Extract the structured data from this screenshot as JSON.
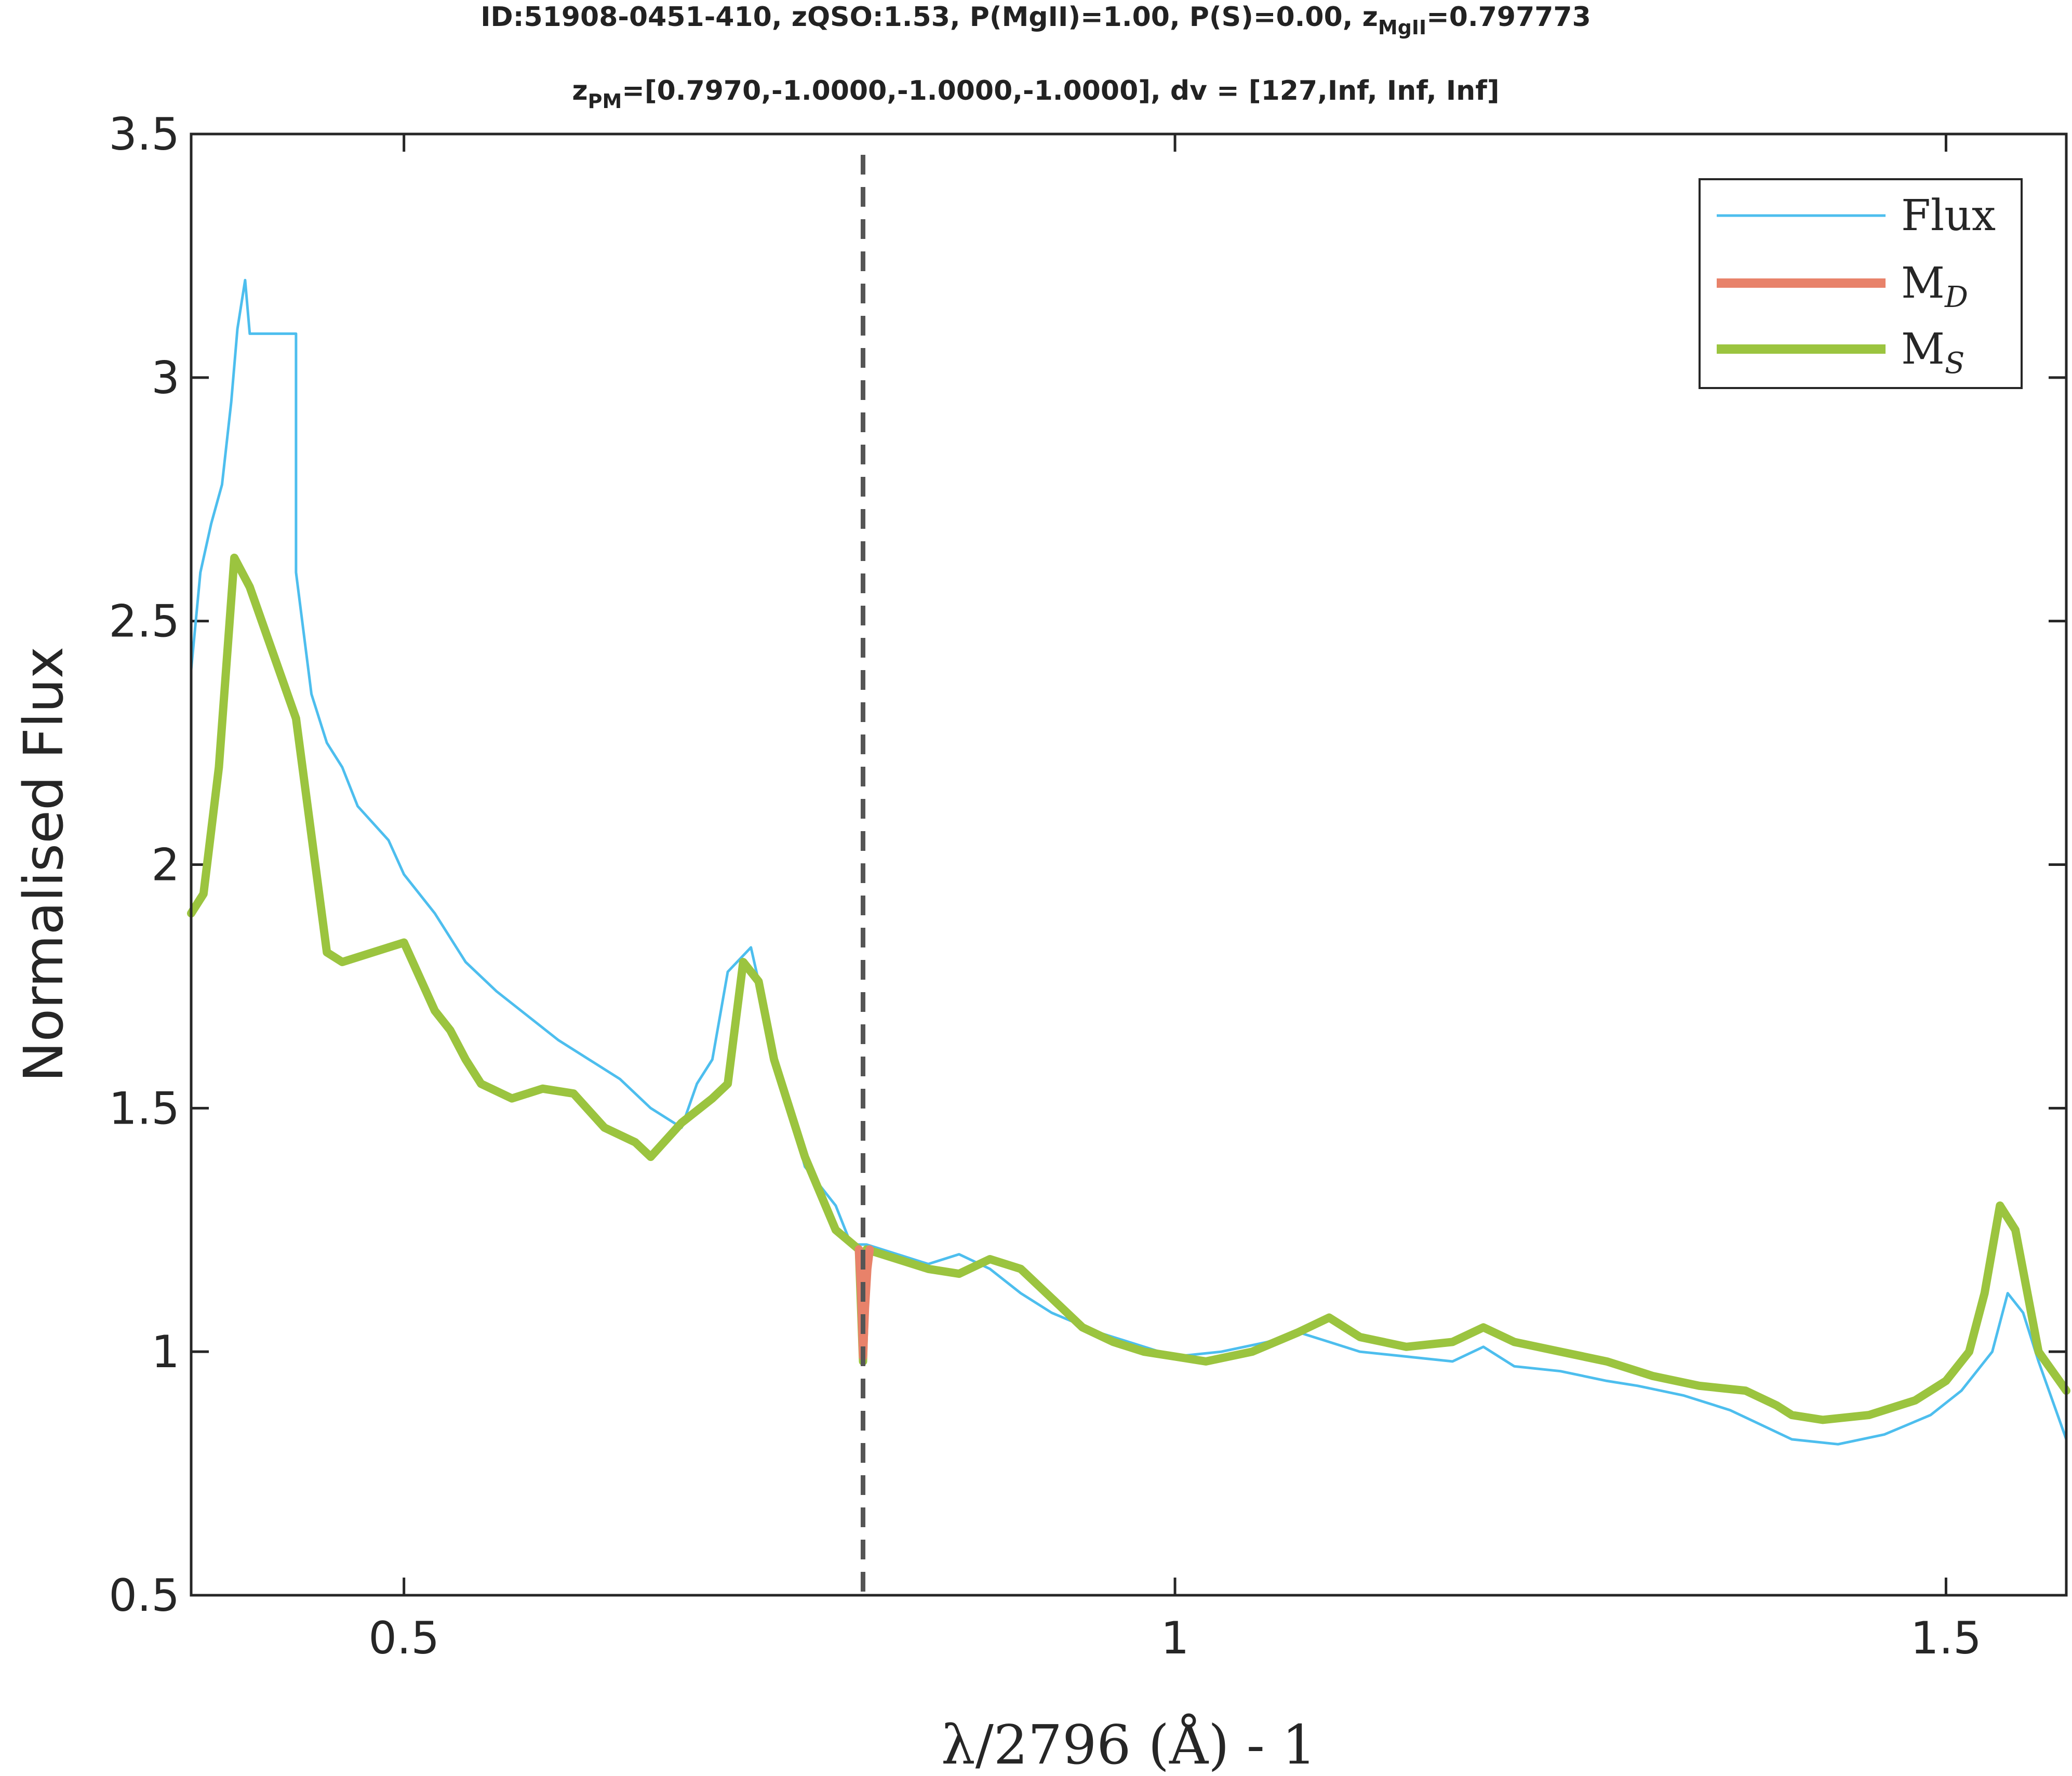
{
  "chart_data": {
    "type": "line",
    "title_line1": "ID:51908-0451-410, zQSO:1.53, P(MgII)=1.00, P(S)=0.00, z",
    "title_line1_sub": "MgII",
    "title_line1_tail": "=0.797773",
    "title_line2": "z",
    "title_line2_sub": "PM",
    "title_line2_tail": "=[0.7970,-1.0000,-1.0000,-1.0000], dv = [127,Inf, Inf, Inf]",
    "xlabel": "λ/2796 (Å) - 1",
    "ylabel": "Normalised Flux",
    "xlim": [
      0.362,
      1.578
    ],
    "ylim": [
      0.5,
      3.5
    ],
    "xticks": [
      "0.5",
      "1",
      "1.5"
    ],
    "yticks": [
      "0.5",
      "1",
      "1.5",
      "2",
      "2.5",
      "3",
      "3.5"
    ],
    "marker_line_x": 0.7977,
    "legend": {
      "position": "top-right",
      "entries": [
        "Flux",
        "M",
        "M"
      ],
      "entry_subscripts": [
        "",
        "D",
        "S"
      ]
    },
    "colors": {
      "flux": "#4DBEEE",
      "md": "#E8826A",
      "ms": "#9BC43F",
      "marker": "#555555",
      "axis": "#262626"
    },
    "series": [
      {
        "name": "Flux",
        "x": [
          0.362,
          0.368,
          0.375,
          0.382,
          0.388,
          0.392,
          0.397,
          0.4,
          0.43,
          0.43,
          0.44,
          0.45,
          0.46,
          0.47,
          0.49,
          0.5,
          0.52,
          0.54,
          0.56,
          0.58,
          0.6,
          0.62,
          0.64,
          0.66,
          0.68,
          0.69,
          0.7,
          0.71,
          0.725,
          0.74,
          0.76,
          0.78,
          0.79,
          0.8,
          0.82,
          0.84,
          0.86,
          0.88,
          0.9,
          0.92,
          0.95,
          0.98,
          1.0,
          1.03,
          1.06,
          1.08,
          1.1,
          1.12,
          1.15,
          1.18,
          1.2,
          1.22,
          1.25,
          1.28,
          1.3,
          1.33,
          1.36,
          1.38,
          1.4,
          1.43,
          1.46,
          1.49,
          1.51,
          1.53,
          1.54,
          1.55,
          1.56,
          1.578
        ],
        "y": [
          2.4,
          2.6,
          2.7,
          2.78,
          2.95,
          3.1,
          3.2,
          3.09,
          3.09,
          2.6,
          2.35,
          2.25,
          2.2,
          2.12,
          2.05,
          1.98,
          1.9,
          1.8,
          1.74,
          1.69,
          1.64,
          1.6,
          1.56,
          1.5,
          1.46,
          1.55,
          1.6,
          1.78,
          1.83,
          1.62,
          1.38,
          1.3,
          1.22,
          1.22,
          1.2,
          1.18,
          1.2,
          1.17,
          1.12,
          1.08,
          1.04,
          1.01,
          0.99,
          1.0,
          1.02,
          1.04,
          1.02,
          1.0,
          0.99,
          0.98,
          1.01,
          0.97,
          0.96,
          0.94,
          0.93,
          0.91,
          0.88,
          0.85,
          0.82,
          0.81,
          0.83,
          0.87,
          0.92,
          1.0,
          1.12,
          1.08,
          0.98,
          0.82
        ]
      },
      {
        "name": "M",
        "x": [
          0.795,
          0.7965,
          0.7977,
          0.799,
          0.8005,
          0.802
        ],
        "y": [
          1.21,
          1.12,
          0.99,
          1.09,
          1.17,
          1.21
        ]
      },
      {
        "name": "M",
        "x": [
          0.362,
          0.37,
          0.38,
          0.39,
          0.4,
          0.43,
          0.45,
          0.46,
          0.48,
          0.5,
          0.52,
          0.53,
          0.54,
          0.55,
          0.57,
          0.59,
          0.61,
          0.63,
          0.65,
          0.66,
          0.68,
          0.7,
          0.71,
          0.72,
          0.73,
          0.74,
          0.76,
          0.78,
          0.795,
          0.7977,
          0.8,
          0.82,
          0.84,
          0.86,
          0.88,
          0.9,
          0.92,
          0.94,
          0.96,
          0.98,
          1.0,
          1.02,
          1.05,
          1.08,
          1.1,
          1.12,
          1.15,
          1.18,
          1.2,
          1.22,
          1.25,
          1.28,
          1.31,
          1.34,
          1.37,
          1.39,
          1.4,
          1.42,
          1.45,
          1.48,
          1.5,
          1.515,
          1.525,
          1.535,
          1.545,
          1.56,
          1.578
        ],
        "y": [
          1.9,
          1.94,
          2.2,
          2.63,
          2.57,
          2.3,
          1.82,
          1.8,
          1.82,
          1.84,
          1.7,
          1.66,
          1.6,
          1.55,
          1.52,
          1.54,
          1.53,
          1.46,
          1.43,
          1.4,
          1.47,
          1.52,
          1.55,
          1.8,
          1.76,
          1.6,
          1.4,
          1.25,
          1.21,
          0.98,
          1.21,
          1.19,
          1.17,
          1.16,
          1.19,
          1.17,
          1.11,
          1.05,
          1.02,
          1.0,
          0.99,
          0.98,
          1.0,
          1.04,
          1.07,
          1.03,
          1.01,
          1.02,
          1.05,
          1.02,
          1.0,
          0.98,
          0.95,
          0.93,
          0.92,
          0.89,
          0.87,
          0.86,
          0.87,
          0.9,
          0.94,
          1.0,
          1.12,
          1.3,
          1.25,
          1.0,
          0.92
        ]
      }
    ]
  }
}
